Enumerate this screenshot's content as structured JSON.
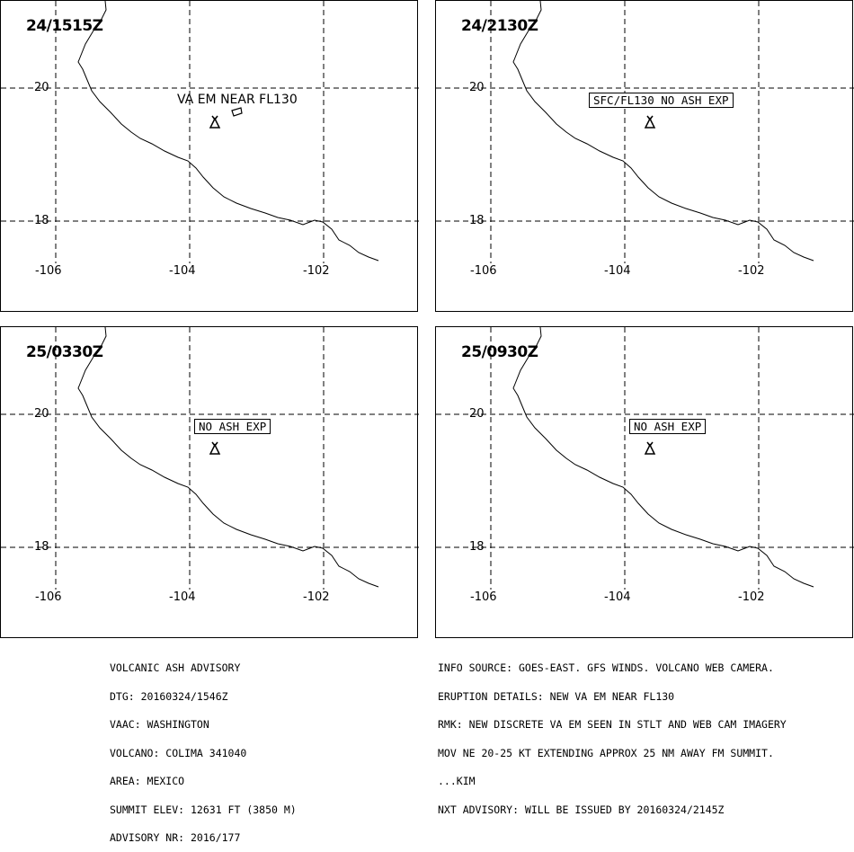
{
  "panels": [
    {
      "time": "24/1515Z",
      "note": "VA EM NEAR FL130",
      "note_style": "plain"
    },
    {
      "time": "24/2130Z",
      "note": "SFC/FL130 NO ASH EXP",
      "note_style": "boxed"
    },
    {
      "time": "25/0330Z",
      "note": "NO ASH EXP",
      "note_style": "boxed"
    },
    {
      "time": "25/0930Z",
      "note": "NO ASH EXP",
      "note_style": "boxed"
    }
  ],
  "lat_labels": [
    "20",
    "18"
  ],
  "lon_labels": [
    "-106",
    "-104",
    "-102"
  ],
  "advisory_left": [
    "VOLCANIC ASH ADVISORY",
    "DTG: 20160324/1546Z",
    "VAAC: WASHINGTON",
    "VOLCANO: COLIMA 341040",
    "AREA: MEXICO",
    "SUMMIT ELEV: 12631 FT (3850 M)",
    "ADVISORY NR: 2016/177"
  ],
  "advisory_right": [
    "INFO SOURCE: GOES-EAST. GFS WINDS. VOLCANO WEB CAMERA.",
    "ERUPTION DETAILS: NEW VA EM NEAR FL130",
    "RMK: NEW DISCRETE VA EM SEEN IN STLT AND WEB CAM IMAGERY",
    "MOV NE 20-25 KT EXTENDING APPROX 25 NM AWAY FM SUMMIT.",
    "...KIM",
    "NXT ADVISORY: WILL BE ISSUED BY 20160324/2145Z"
  ],
  "colors": {
    "line": "#000000",
    "background": "#ffffff"
  },
  "icons": {
    "volcano": "volcano-icon"
  }
}
